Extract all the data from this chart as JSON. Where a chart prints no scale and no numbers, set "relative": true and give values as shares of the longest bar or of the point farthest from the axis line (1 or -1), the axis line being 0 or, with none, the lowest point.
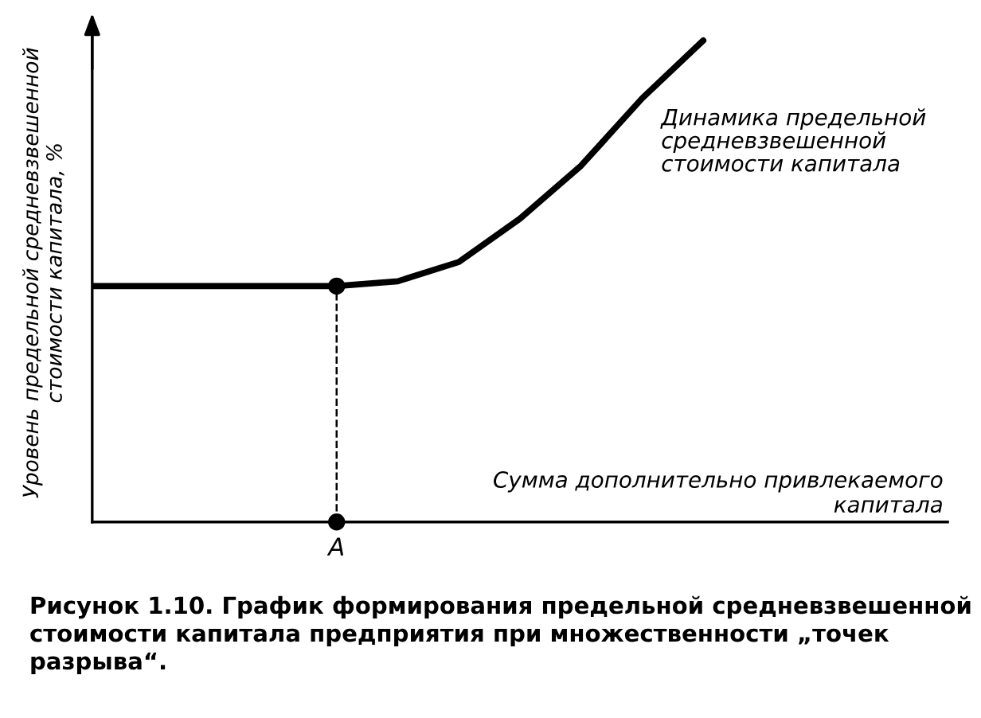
{
  "chart_data": {
    "type": "line",
    "relative": true,
    "ylabel": "Уровень предельной средневзвешенной\nстоимости капитала, %",
    "xlabel": "Сумма дополнительно привлекаемого\nкапитала",
    "categories": [
      null,
      null,
      null,
      null,
      null,
      null,
      null,
      null,
      null,
      null,
      null
    ],
    "series": [
      {
        "color": "#000000",
        "values": [
          0.49,
          0.49,
          0.49,
          0.49,
          0.49,
          0.5,
          0.54,
          0.63,
          0.74,
          0.88,
          1.0
        ]
      }
    ],
    "annotations": [
      "A",
      "Динамика предельной\nсредневзвешенной\nстоимости капитала",
      "Рисунок 1.10. График формирования предельной средневзвешенной стоимости капитала предприятия при множественности „точек разрыва“."
    ],
    "legend": false,
    "marker": "none",
    "line_style": "solid"
  }
}
